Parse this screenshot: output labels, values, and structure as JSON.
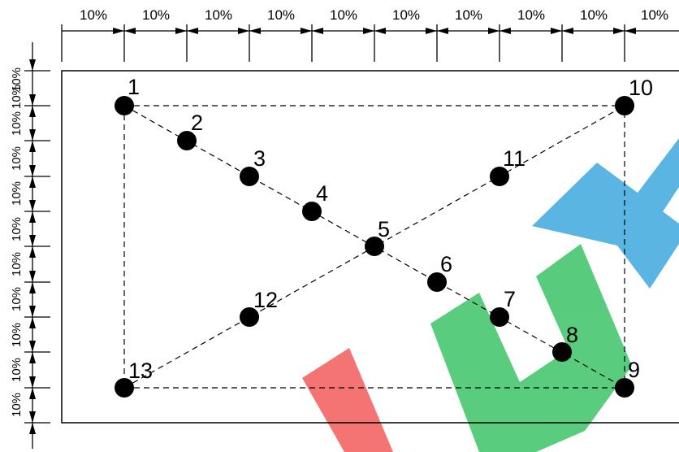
{
  "colors": {
    "line": "#000000",
    "background": "#ffffff",
    "watermark_red": "#f25a5a",
    "watermark_green": "#3cc466",
    "watermark_blue": "#3fa9dd"
  },
  "dimension_labels": {
    "top": [
      "10%",
      "10%",
      "10%",
      "10%",
      "10%",
      "10%",
      "10%",
      "10%",
      "10%",
      "10%"
    ],
    "left": [
      "10%",
      "10%",
      "10%",
      "10%",
      "10%",
      "10%",
      "10%",
      "10%",
      "10%",
      "10%",
      "10%"
    ]
  },
  "points": [
    {
      "label": "1"
    },
    {
      "label": "2"
    },
    {
      "label": "3"
    },
    {
      "label": "4"
    },
    {
      "label": "5"
    },
    {
      "label": "6"
    },
    {
      "label": "7"
    },
    {
      "label": "8"
    },
    {
      "label": "9"
    },
    {
      "label": "10"
    },
    {
      "label": "11"
    },
    {
      "label": "12"
    },
    {
      "label": "13"
    }
  ],
  "watermark": {
    "text": "LUX"
  }
}
